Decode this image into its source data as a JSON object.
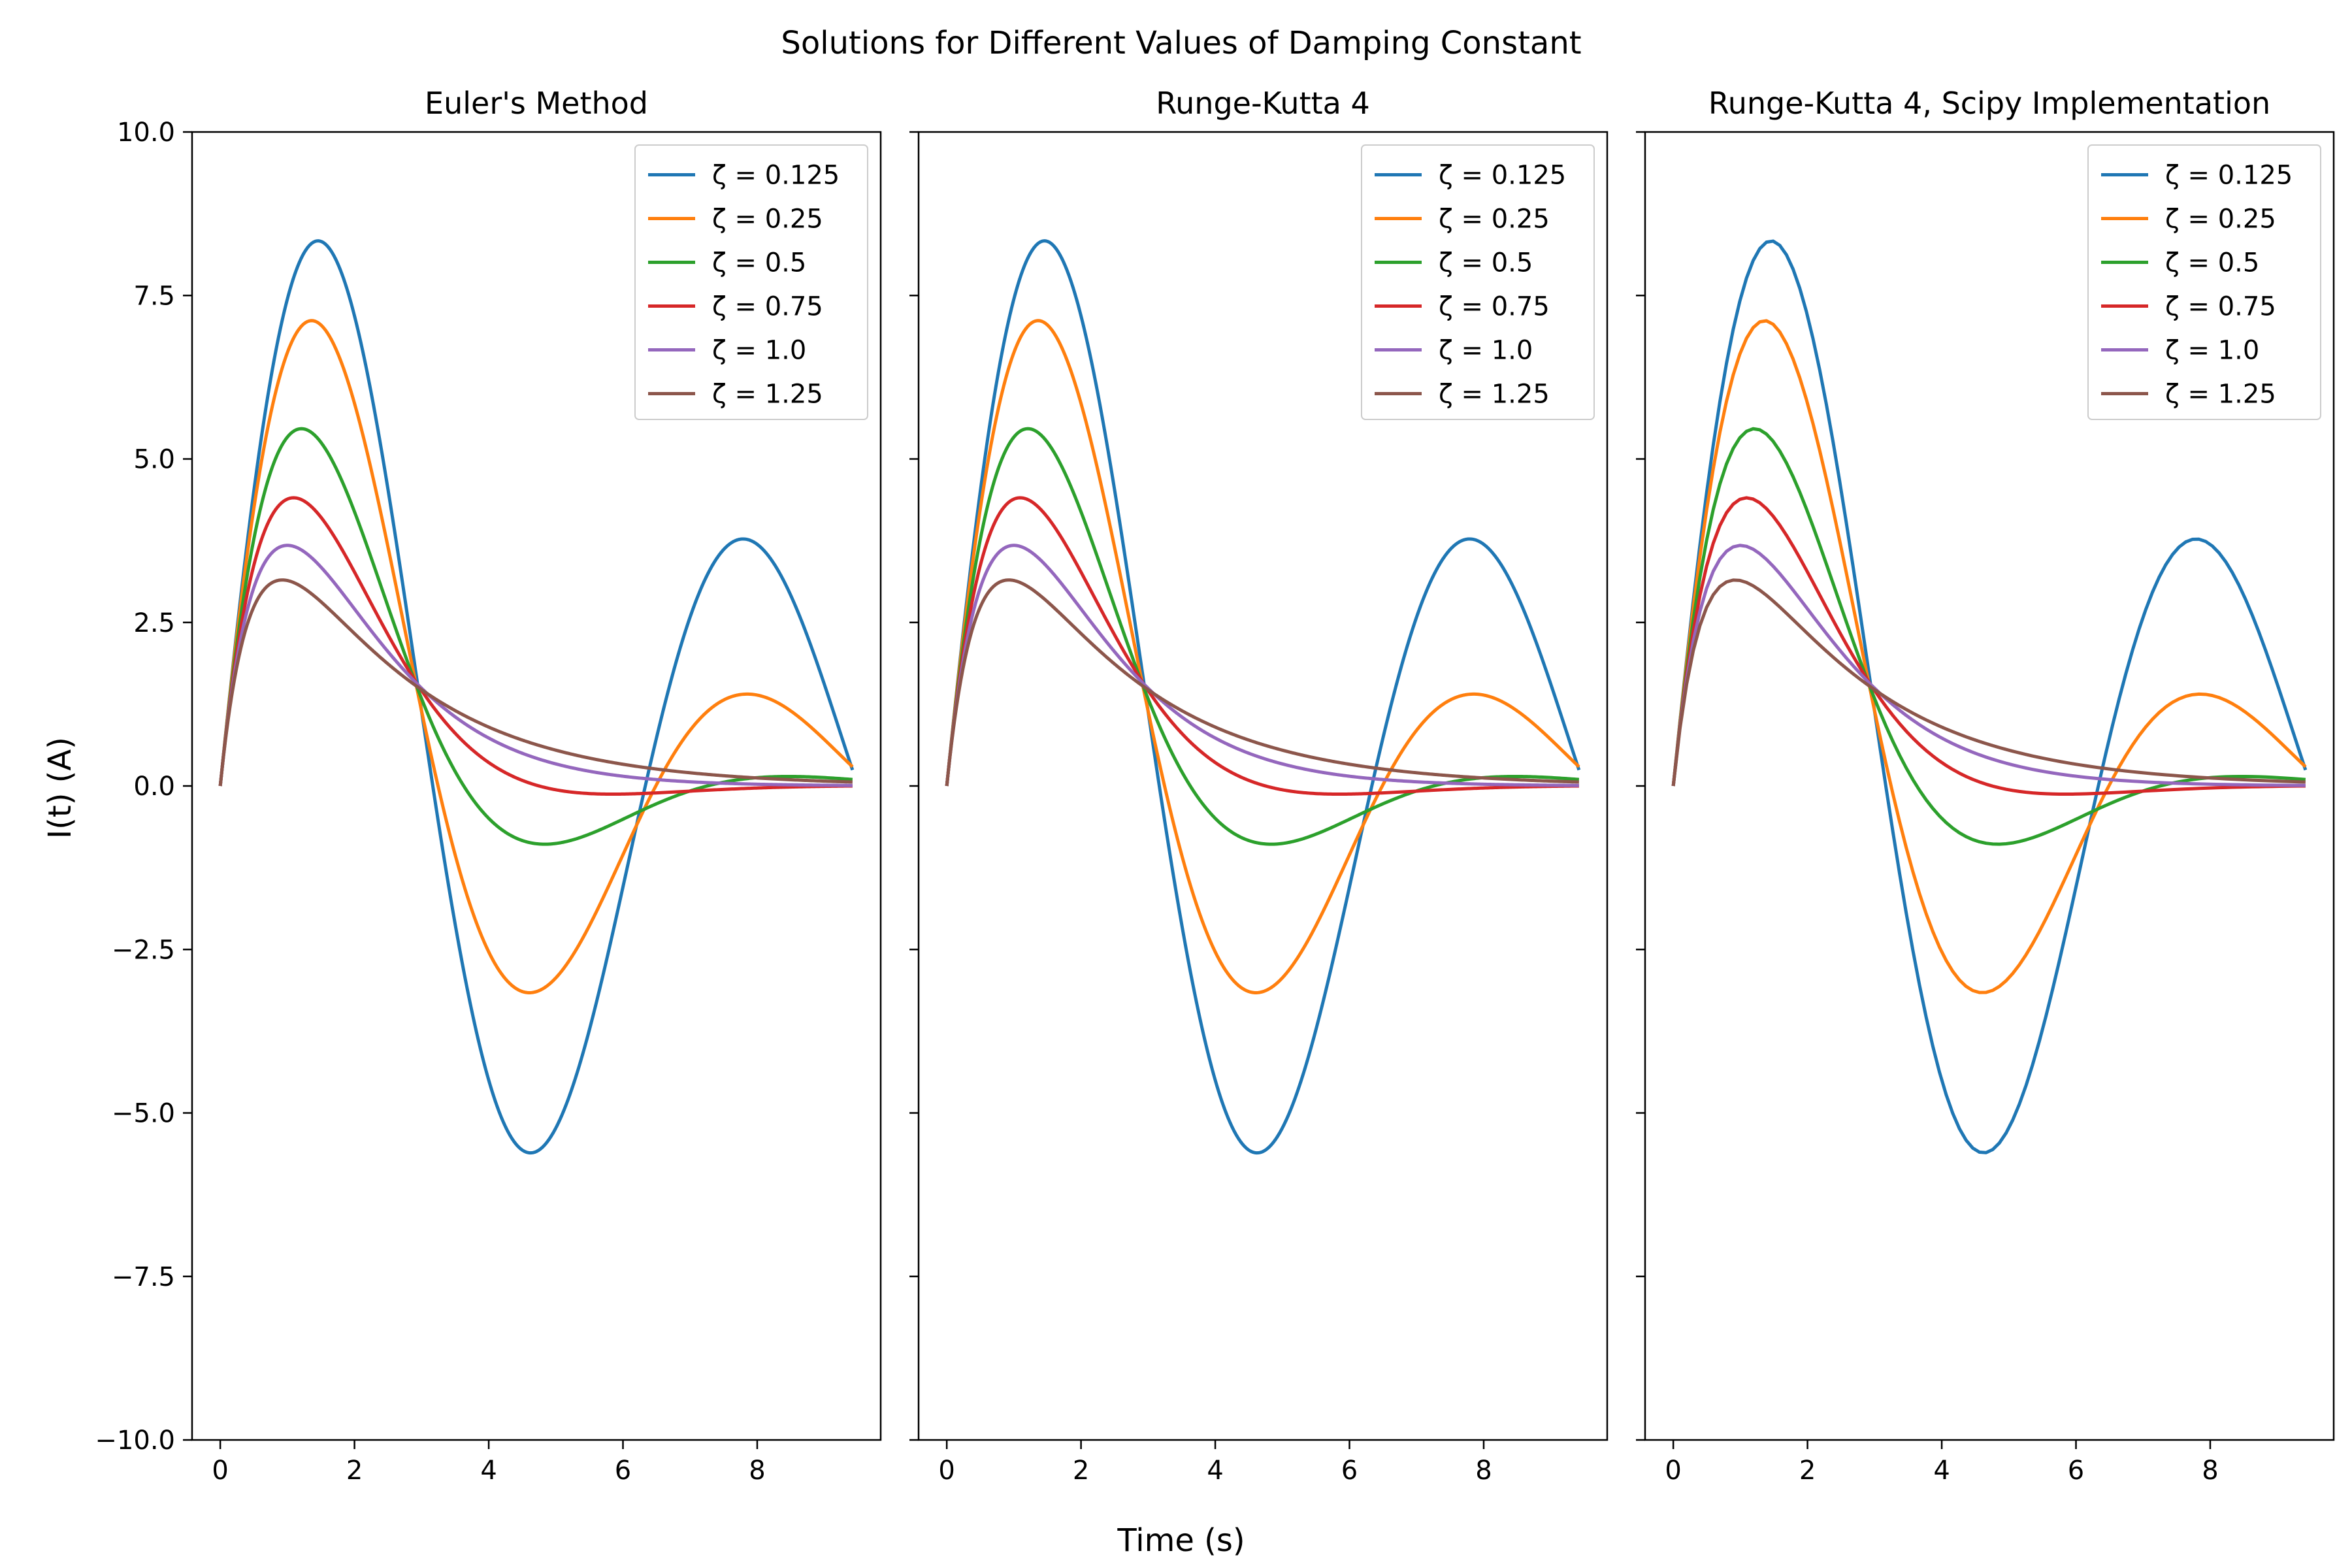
{
  "figure": {
    "suptitle": "Solutions for Different Values of Damping Constant",
    "xlabel": "Time (s)",
    "ylabel": "I(t) (A)"
  },
  "chart_data": [
    {
      "type": "line",
      "title": "Euler's Method",
      "xlim": [
        0,
        9.42
      ],
      "ylim": [
        -10.0,
        10.0
      ],
      "xticks": [
        0,
        2,
        4,
        6,
        8
      ],
      "yticks": [
        -10.0,
        -7.5,
        -5.0,
        -2.5,
        0.0,
        2.5,
        5.0,
        7.5,
        10.0
      ],
      "ytick_labels": [
        "−10.0",
        "−7.5",
        "−5.0",
        "−2.5",
        "0.0",
        "2.5",
        "5.0",
        "7.5",
        "10.0"
      ],
      "show_ytick_labels": true,
      "grid": false,
      "legend": "upper right",
      "series": [
        {
          "name": "ζ = 0.125",
          "zeta": 0.125,
          "color": "#1f77b4"
        },
        {
          "name": "ζ = 0.25",
          "zeta": 0.25,
          "color": "#ff7f0e"
        },
        {
          "name": "ζ = 0.5",
          "zeta": 0.5,
          "color": "#2ca02c"
        },
        {
          "name": "ζ = 0.75",
          "zeta": 0.75,
          "color": "#d62728"
        },
        {
          "name": "ζ = 1.0",
          "zeta": 1.0,
          "color": "#9467bd"
        },
        {
          "name": "ζ = 1.25",
          "zeta": 1.25,
          "color": "#8c564b"
        }
      ]
    },
    {
      "type": "line",
      "title": "Runge-Kutta 4",
      "xlim": [
        0,
        9.42
      ],
      "ylim": [
        -10.0,
        10.0
      ],
      "xticks": [
        0,
        2,
        4,
        6,
        8
      ],
      "yticks": [
        -10.0,
        -7.5,
        -5.0,
        -2.5,
        0.0,
        2.5,
        5.0,
        7.5,
        10.0
      ],
      "ytick_labels": [],
      "show_ytick_labels": false,
      "grid": false,
      "legend": "upper right",
      "series": [
        {
          "name": "ζ = 0.125",
          "zeta": 0.125,
          "color": "#1f77b4"
        },
        {
          "name": "ζ = 0.25",
          "zeta": 0.25,
          "color": "#ff7f0e"
        },
        {
          "name": "ζ = 0.5",
          "zeta": 0.5,
          "color": "#2ca02c"
        },
        {
          "name": "ζ = 0.75",
          "zeta": 0.75,
          "color": "#d62728"
        },
        {
          "name": "ζ = 1.0",
          "zeta": 1.0,
          "color": "#9467bd"
        },
        {
          "name": "ζ = 1.25",
          "zeta": 1.25,
          "color": "#8c564b"
        }
      ]
    },
    {
      "type": "line",
      "title": "Runge-Kutta 4, Scipy Implementation",
      "xlim": [
        0,
        9.42
      ],
      "ylim": [
        -10.0,
        10.0
      ],
      "xticks": [
        0,
        2,
        4,
        6,
        8
      ],
      "yticks": [
        -10.0,
        -7.5,
        -5.0,
        -2.5,
        0.0,
        2.5,
        5.0,
        7.5,
        10.0
      ],
      "ytick_labels": [],
      "show_ytick_labels": false,
      "grid": false,
      "legend": "upper right",
      "series": [
        {
          "name": "ζ = 0.125",
          "zeta": 0.125,
          "color": "#1f77b4"
        },
        {
          "name": "ζ = 0.25",
          "zeta": 0.25,
          "color": "#ff7f0e"
        },
        {
          "name": "ζ = 0.5",
          "zeta": 0.5,
          "color": "#2ca02c"
        },
        {
          "name": "ζ = 0.75",
          "zeta": 0.75,
          "color": "#d62728"
        },
        {
          "name": "ζ = 1.0",
          "zeta": 1.0,
          "color": "#9467bd"
        },
        {
          "name": "ζ = 1.25",
          "zeta": 1.25,
          "color": "#8c564b"
        }
      ]
    }
  ]
}
